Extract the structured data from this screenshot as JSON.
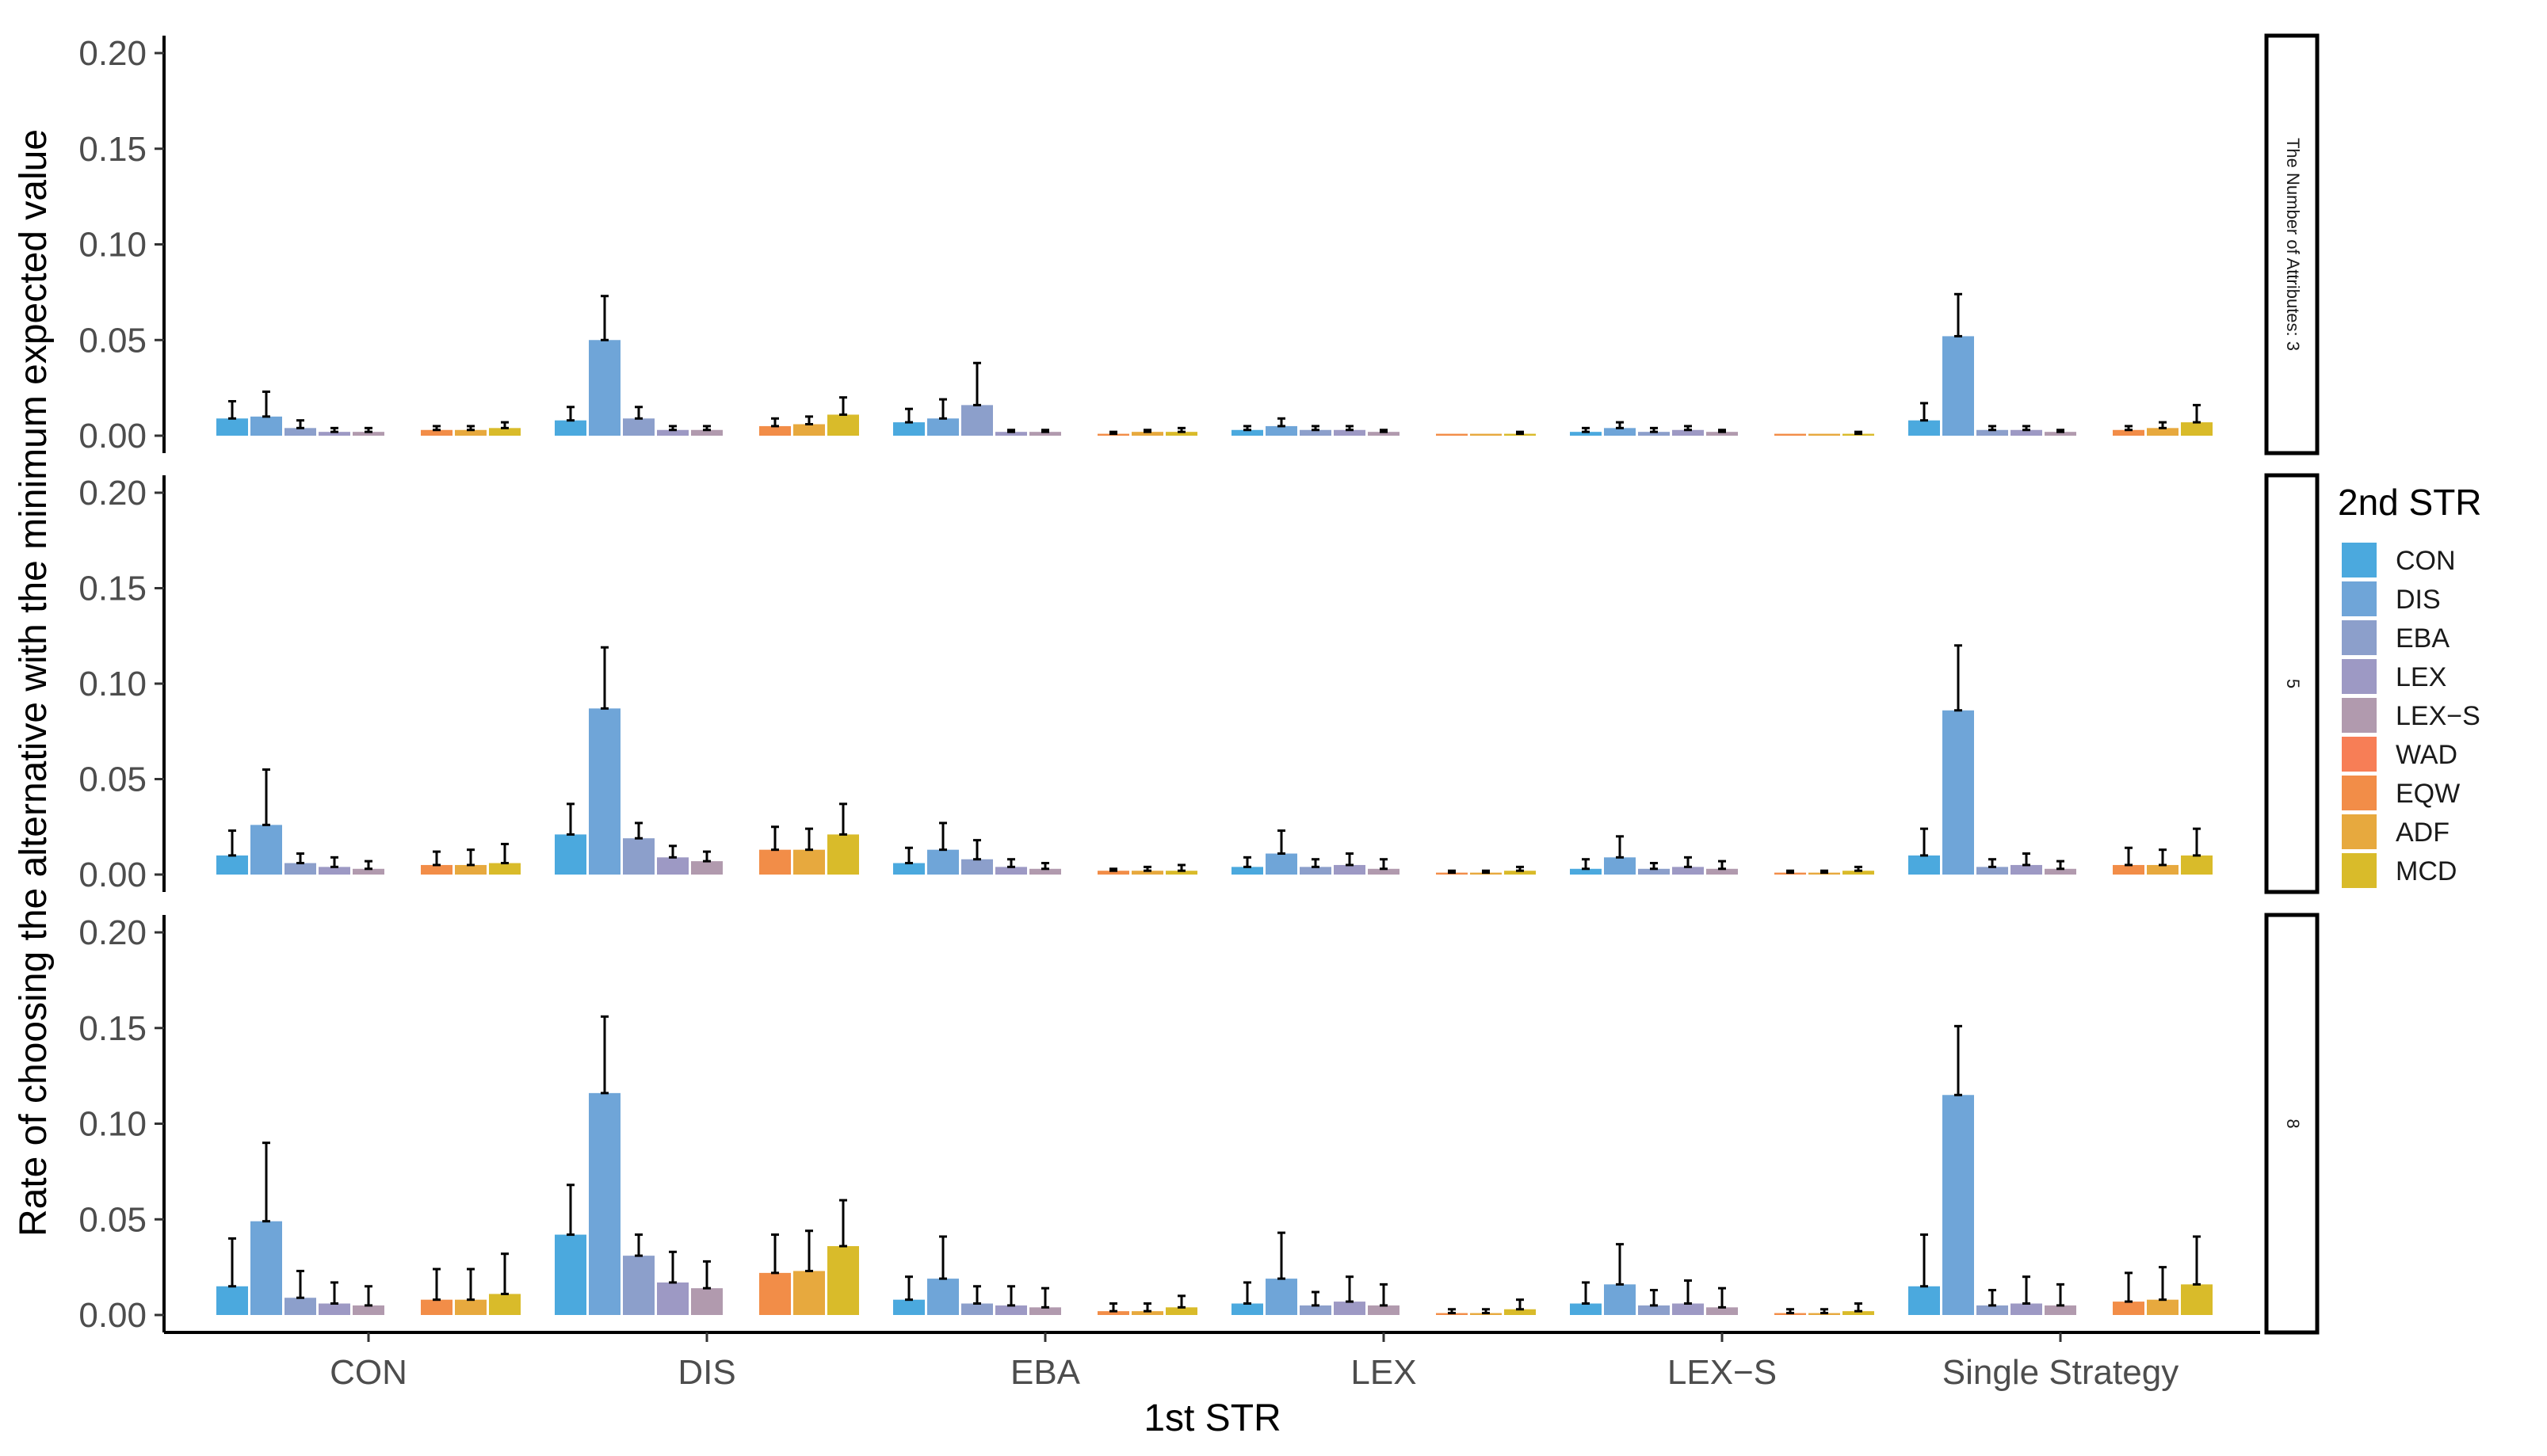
{
  "chart_data": {
    "type": "bar",
    "xlabel": "1st STR",
    "ylabel": "Rate of choosing the alternative with the minimum expected value",
    "ylim": [
      0,
      0.2
    ],
    "yticks": [
      "0.00",
      "0.05",
      "0.10",
      "0.15",
      "0.20"
    ],
    "categories": [
      "CON",
      "DIS",
      "EBA",
      "LEX",
      "LEX−S",
      "Single Strategy"
    ],
    "legend": {
      "title": "2nd STR",
      "position": "right",
      "entries": [
        "CON",
        "DIS",
        "EBA",
        "LEX",
        "LEX−S",
        "WAD",
        "EQW",
        "ADF",
        "MCD"
      ]
    },
    "series_colors": [
      "#4BA9DE",
      "#6FA5D8",
      "#8C9FCB",
      "#9D99C4",
      "#B19AAE",
      "#F77E56",
      "#F28D48",
      "#E7A93E",
      "#D9BB2A"
    ],
    "facets": [
      {
        "strip": "The Number of Attributes: 3",
        "values": [
          [
            0.009,
            0.01,
            0.004,
            0.002,
            0.002,
            0.0,
            0.003,
            0.003,
            0.004
          ],
          [
            0.008,
            0.05,
            0.009,
            0.003,
            0.003,
            0.0,
            0.005,
            0.006,
            0.011
          ],
          [
            0.007,
            0.009,
            0.016,
            0.002,
            0.002,
            0.0,
            0.001,
            0.002,
            0.002
          ],
          [
            0.003,
            0.005,
            0.003,
            0.003,
            0.002,
            0.0,
            0.001,
            0.001,
            0.001
          ],
          [
            0.002,
            0.004,
            0.002,
            0.003,
            0.002,
            0.0,
            0.001,
            0.001,
            0.001
          ],
          [
            0.008,
            0.052,
            0.003,
            0.003,
            0.002,
            0.0,
            0.003,
            0.004,
            0.007
          ]
        ],
        "errors": [
          [
            0.009,
            0.013,
            0.004,
            0.002,
            0.002,
            0.0,
            0.002,
            0.002,
            0.003
          ],
          [
            0.007,
            0.023,
            0.006,
            0.002,
            0.002,
            0.0,
            0.004,
            0.004,
            0.009
          ],
          [
            0.007,
            0.01,
            0.022,
            0.001,
            0.001,
            0.0,
            0.001,
            0.001,
            0.002
          ],
          [
            0.002,
            0.004,
            0.002,
            0.002,
            0.001,
            0.0,
            0.0,
            0.0,
            0.001
          ],
          [
            0.002,
            0.003,
            0.002,
            0.002,
            0.001,
            0.0,
            0.0,
            0.0,
            0.001
          ],
          [
            0.009,
            0.022,
            0.002,
            0.002,
            0.001,
            0.0,
            0.002,
            0.003,
            0.009
          ]
        ]
      },
      {
        "strip": "5",
        "values": [
          [
            0.01,
            0.026,
            0.006,
            0.004,
            0.003,
            0.0,
            0.005,
            0.005,
            0.006
          ],
          [
            0.021,
            0.087,
            0.019,
            0.009,
            0.007,
            0.0,
            0.013,
            0.013,
            0.021
          ],
          [
            0.006,
            0.013,
            0.008,
            0.004,
            0.003,
            0.0,
            0.002,
            0.002,
            0.002
          ],
          [
            0.004,
            0.011,
            0.004,
            0.005,
            0.003,
            0.0,
            0.001,
            0.001,
            0.002
          ],
          [
            0.003,
            0.009,
            0.003,
            0.004,
            0.003,
            0.0,
            0.001,
            0.001,
            0.002
          ],
          [
            0.01,
            0.086,
            0.004,
            0.005,
            0.003,
            0.0,
            0.005,
            0.005,
            0.01
          ]
        ],
        "errors": [
          [
            0.013,
            0.029,
            0.005,
            0.005,
            0.004,
            0.0,
            0.007,
            0.008,
            0.01
          ],
          [
            0.016,
            0.032,
            0.008,
            0.006,
            0.005,
            0.0,
            0.012,
            0.011,
            0.016
          ],
          [
            0.008,
            0.014,
            0.01,
            0.004,
            0.003,
            0.0,
            0.001,
            0.002,
            0.003
          ],
          [
            0.005,
            0.012,
            0.004,
            0.006,
            0.005,
            0.0,
            0.001,
            0.001,
            0.002
          ],
          [
            0.005,
            0.011,
            0.003,
            0.005,
            0.004,
            0.0,
            0.001,
            0.001,
            0.002
          ],
          [
            0.014,
            0.034,
            0.004,
            0.006,
            0.004,
            0.0,
            0.009,
            0.008,
            0.014
          ]
        ]
      },
      {
        "strip": "8",
        "values": [
          [
            0.015,
            0.049,
            0.009,
            0.006,
            0.005,
            0.0,
            0.008,
            0.008,
            0.011
          ],
          [
            0.042,
            0.116,
            0.031,
            0.017,
            0.014,
            0.0,
            0.022,
            0.023,
            0.036
          ],
          [
            0.008,
            0.019,
            0.006,
            0.005,
            0.004,
            0.0,
            0.002,
            0.002,
            0.004
          ],
          [
            0.006,
            0.019,
            0.005,
            0.007,
            0.005,
            0.0,
            0.001,
            0.001,
            0.003
          ],
          [
            0.006,
            0.016,
            0.005,
            0.006,
            0.004,
            0.0,
            0.001,
            0.001,
            0.002
          ],
          [
            0.015,
            0.115,
            0.005,
            0.006,
            0.005,
            0.0,
            0.007,
            0.008,
            0.016
          ]
        ],
        "errors": [
          [
            0.025,
            0.041,
            0.014,
            0.011,
            0.01,
            0.0,
            0.016,
            0.016,
            0.021
          ],
          [
            0.026,
            0.04,
            0.011,
            0.016,
            0.014,
            0.0,
            0.02,
            0.021,
            0.024
          ],
          [
            0.012,
            0.022,
            0.009,
            0.01,
            0.01,
            0.0,
            0.004,
            0.004,
            0.006
          ],
          [
            0.011,
            0.024,
            0.007,
            0.013,
            0.011,
            0.0,
            0.002,
            0.002,
            0.005
          ],
          [
            0.011,
            0.021,
            0.008,
            0.012,
            0.01,
            0.0,
            0.002,
            0.002,
            0.004
          ],
          [
            0.027,
            0.036,
            0.008,
            0.014,
            0.011,
            0.0,
            0.015,
            0.017,
            0.025
          ]
        ]
      }
    ]
  }
}
